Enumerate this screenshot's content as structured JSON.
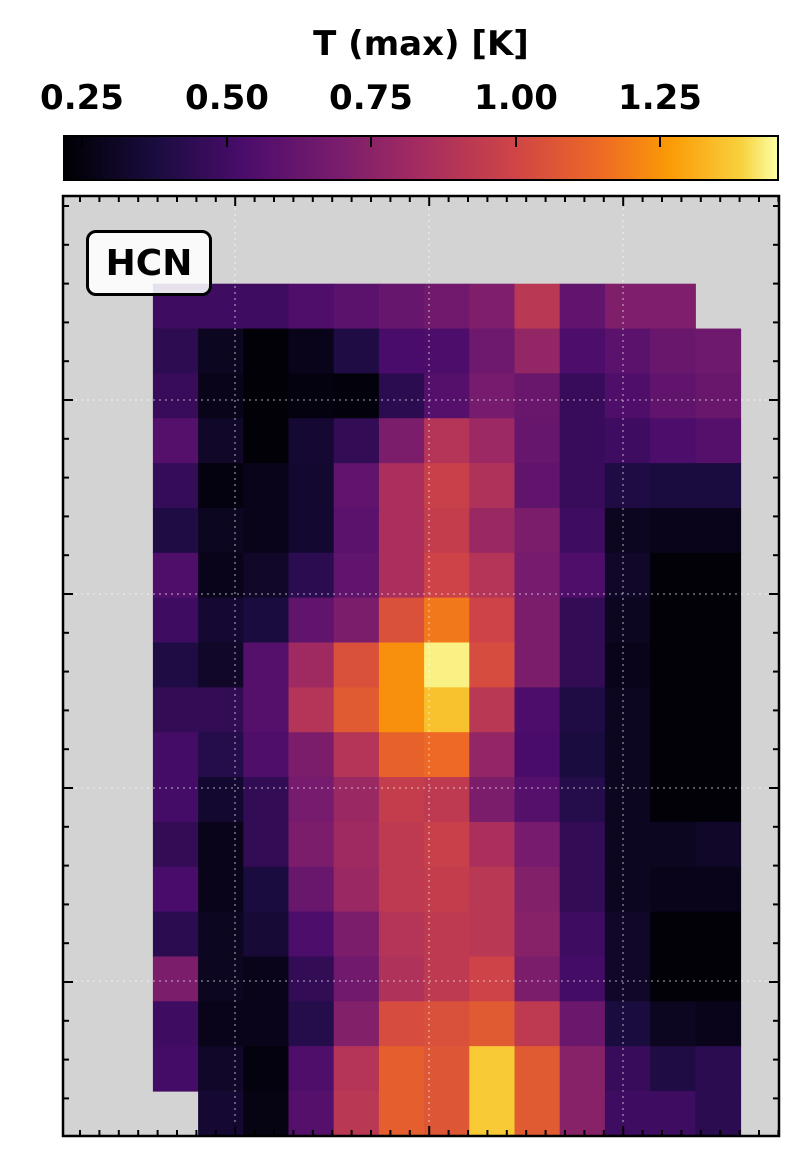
{
  "chart_data": {
    "type": "heatmap",
    "title": "",
    "colorbar": {
      "label": "T (max) [K]",
      "ticks": [
        0.25,
        0.5,
        0.75,
        1.0,
        1.25
      ],
      "tick_labels": [
        "0.25",
        "0.50",
        "0.75",
        "1.00",
        "1.25"
      ],
      "range": [
        0.12,
        1.4
      ],
      "colormap": "inferno"
    },
    "annotation": "HCN",
    "nodata_color": "#d3d3d3",
    "grid": true,
    "n_cols": 16,
    "n_rows": 23,
    "values": [
      [
        null,
        null,
        null,
        null,
        null,
        null,
        null,
        null,
        null,
        null,
        null,
        null,
        null,
        null,
        null,
        null
      ],
      [
        null,
        null,
        null,
        null,
        null,
        null,
        null,
        null,
        null,
        null,
        null,
        null,
        null,
        null,
        null,
        null
      ],
      [
        null,
        null,
        0.4,
        0.4,
        0.4,
        0.46,
        0.5,
        0.54,
        0.58,
        0.63,
        0.84,
        0.52,
        0.63,
        0.63,
        null,
        null
      ],
      [
        null,
        null,
        0.35,
        0.2,
        0.13,
        0.18,
        0.3,
        0.44,
        0.45,
        0.57,
        0.7,
        0.45,
        0.5,
        0.55,
        0.57,
        null
      ],
      [
        null,
        null,
        0.38,
        0.18,
        0.13,
        0.15,
        0.14,
        0.34,
        0.48,
        0.6,
        0.55,
        0.38,
        0.46,
        0.52,
        0.55,
        null
      ],
      [
        null,
        null,
        0.48,
        0.22,
        0.13,
        0.25,
        0.36,
        0.62,
        0.82,
        0.73,
        0.54,
        0.38,
        0.4,
        0.45,
        0.48,
        null
      ],
      [
        null,
        null,
        0.37,
        0.15,
        0.18,
        0.24,
        0.52,
        0.78,
        0.9,
        0.8,
        0.52,
        0.38,
        0.3,
        0.28,
        0.28,
        null
      ],
      [
        null,
        null,
        0.3,
        0.2,
        0.18,
        0.24,
        0.5,
        0.78,
        0.88,
        0.72,
        0.62,
        0.4,
        0.2,
        0.18,
        0.18,
        null
      ],
      [
        null,
        null,
        0.46,
        0.18,
        0.22,
        0.34,
        0.52,
        0.78,
        0.92,
        0.82,
        0.6,
        0.46,
        0.22,
        0.13,
        0.13,
        null
      ],
      [
        null,
        null,
        0.4,
        0.25,
        0.28,
        0.52,
        0.62,
        0.98,
        1.12,
        0.92,
        0.62,
        0.36,
        0.2,
        0.13,
        0.13,
        null
      ],
      [
        null,
        null,
        0.3,
        0.22,
        0.48,
        0.74,
        0.98,
        1.18,
        1.38,
        0.96,
        0.62,
        0.36,
        0.18,
        0.13,
        0.13,
        null
      ],
      [
        null,
        null,
        0.36,
        0.36,
        0.48,
        0.82,
        1.02,
        1.18,
        1.3,
        0.84,
        0.45,
        0.3,
        0.2,
        0.13,
        0.13,
        null
      ],
      [
        null,
        null,
        0.42,
        0.32,
        0.46,
        0.62,
        0.82,
        1.05,
        1.08,
        0.7,
        0.44,
        0.28,
        0.2,
        0.13,
        0.13,
        null
      ],
      [
        null,
        null,
        0.42,
        0.24,
        0.36,
        0.6,
        0.72,
        0.88,
        0.86,
        0.62,
        0.48,
        0.32,
        0.2,
        0.13,
        0.13,
        null
      ],
      [
        null,
        null,
        0.36,
        0.18,
        0.36,
        0.62,
        0.74,
        0.86,
        0.9,
        0.78,
        0.6,
        0.36,
        0.2,
        0.2,
        0.22,
        null
      ],
      [
        null,
        null,
        0.44,
        0.18,
        0.28,
        0.55,
        0.72,
        0.86,
        0.88,
        0.84,
        0.64,
        0.36,
        0.2,
        0.18,
        0.18,
        null
      ],
      [
        null,
        null,
        0.34,
        0.2,
        0.26,
        0.45,
        0.62,
        0.82,
        0.86,
        0.84,
        0.66,
        0.4,
        0.22,
        0.13,
        0.13,
        null
      ],
      [
        null,
        null,
        0.62,
        0.2,
        0.18,
        0.36,
        0.58,
        0.8,
        0.86,
        0.92,
        0.62,
        0.42,
        0.22,
        0.13,
        0.13,
        null
      ],
      [
        null,
        null,
        0.4,
        0.18,
        0.18,
        0.32,
        0.64,
        0.96,
        0.98,
        1.02,
        0.86,
        0.56,
        0.28,
        0.2,
        0.18,
        null
      ],
      [
        null,
        null,
        0.42,
        0.22,
        0.15,
        0.46,
        0.82,
        1.04,
        1.0,
        1.32,
        1.02,
        0.66,
        0.38,
        0.3,
        0.34,
        null
      ],
      [
        null,
        null,
        null,
        0.25,
        0.16,
        0.48,
        0.84,
        1.04,
        1.0,
        1.32,
        1.02,
        0.66,
        0.4,
        0.4,
        0.34,
        null
      ],
      [
        null,
        null,
        null,
        null,
        null,
        null,
        null,
        null,
        null,
        null,
        null,
        null,
        null,
        null,
        null,
        null
      ],
      [
        null,
        null,
        null,
        null,
        null,
        null,
        null,
        null,
        null,
        null,
        null,
        null,
        null,
        null,
        null,
        null
      ]
    ]
  }
}
